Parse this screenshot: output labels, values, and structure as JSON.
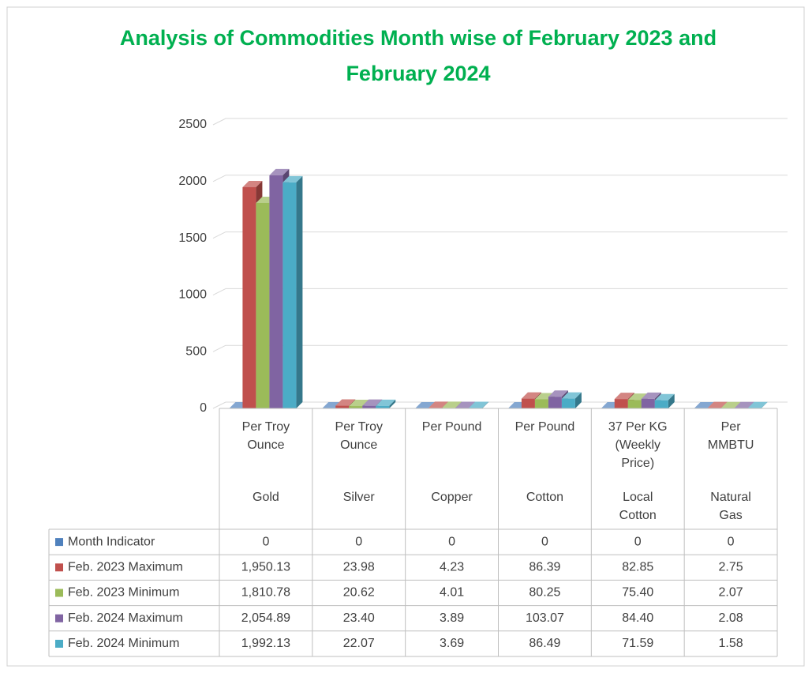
{
  "chart_data": {
    "type": "bar",
    "title": "Analysis of Commodities Month wise of February 2023 and February 2024",
    "categories": [
      "Gold",
      "Silver",
      "Copper",
      "Cotton",
      "Local Cotton",
      "Natural Gas"
    ],
    "units": [
      "Per Troy Ounce",
      "Per Troy Ounce",
      "Per Pound",
      "Per Pound",
      "37 Per KG (Weekly Price)",
      "Per MMBTU"
    ],
    "ylim": [
      0,
      2500
    ],
    "yticks": [
      0,
      500,
      1000,
      1500,
      2000,
      2500
    ],
    "grid": true,
    "series": [
      {
        "name": "Month Indicator",
        "color": "#4f81bd",
        "values": [
          0,
          0,
          0,
          0,
          0,
          0
        ]
      },
      {
        "name": "Feb. 2023 Maximum",
        "color": "#c0504d",
        "values": [
          1950.13,
          23.98,
          4.23,
          86.39,
          82.85,
          2.75
        ],
        "value_labels": [
          "1,950.13",
          "23.98",
          "4.23",
          "86.39",
          "82.85",
          "2.75"
        ]
      },
      {
        "name": "Feb. 2023 Minimum",
        "color": "#9bbb59",
        "values": [
          1810.78,
          20.62,
          4.01,
          80.25,
          75.4,
          2.07
        ],
        "value_labels": [
          "1,810.78",
          "20.62",
          "4.01",
          "80.25",
          "75.40",
          "2.07"
        ]
      },
      {
        "name": "Feb. 2024 Maximum",
        "color": "#8064a2",
        "values": [
          2054.89,
          23.4,
          3.89,
          103.07,
          84.4,
          2.08
        ],
        "value_labels": [
          "2,054.89",
          "23.40",
          "3.89",
          "103.07",
          "84.40",
          "2.08"
        ]
      },
      {
        "name": "Feb. 2024 Minimum",
        "color": "#4bacc6",
        "values": [
          1992.13,
          22.07,
          3.69,
          86.49,
          71.59,
          1.58
        ],
        "value_labels": [
          "1,992.13",
          "22.07",
          "3.69",
          "86.49",
          "71.59",
          "1.58"
        ]
      }
    ]
  }
}
